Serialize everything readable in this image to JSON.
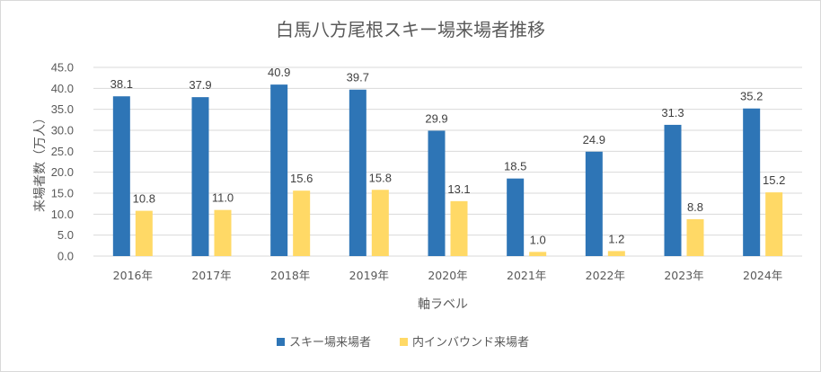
{
  "chart_data": {
    "type": "bar",
    "title": "白馬八方尾根スキー場来場者推移",
    "xlabel": "軸ラベル",
    "ylabel": "来場者数（万人）",
    "ylim": [
      0,
      45
    ],
    "ytick_step": 5,
    "ytick_labels": [
      "0.0",
      "5.0",
      "10.0",
      "15.0",
      "20.0",
      "25.0",
      "30.0",
      "35.0",
      "40.0",
      "45.0"
    ],
    "grid": true,
    "legend_position": "bottom",
    "categories": [
      "2016年",
      "2017年",
      "2018年",
      "2019年",
      "2020年",
      "2021年",
      "2022年",
      "2023年",
      "2024年"
    ],
    "series": [
      {
        "name": "スキー場来場者",
        "color": "#2e75b6",
        "values": [
          38.1,
          37.9,
          40.9,
          39.7,
          29.9,
          18.5,
          24.9,
          31.3,
          35.2
        ],
        "labels": [
          "38.1",
          "37.9",
          "40.9",
          "39.7",
          "29.9",
          "18.5",
          "24.9",
          "31.3",
          "35.2"
        ]
      },
      {
        "name": "内インバウンド来場者",
        "color": "#ffd966",
        "values": [
          10.8,
          11.0,
          15.6,
          15.8,
          13.1,
          1.0,
          1.2,
          8.8,
          15.2
        ],
        "labels": [
          "10.8",
          "11.0",
          "15.6",
          "15.8",
          "13.1",
          "1.0",
          "1.2",
          "8.8",
          "15.2"
        ]
      }
    ]
  }
}
